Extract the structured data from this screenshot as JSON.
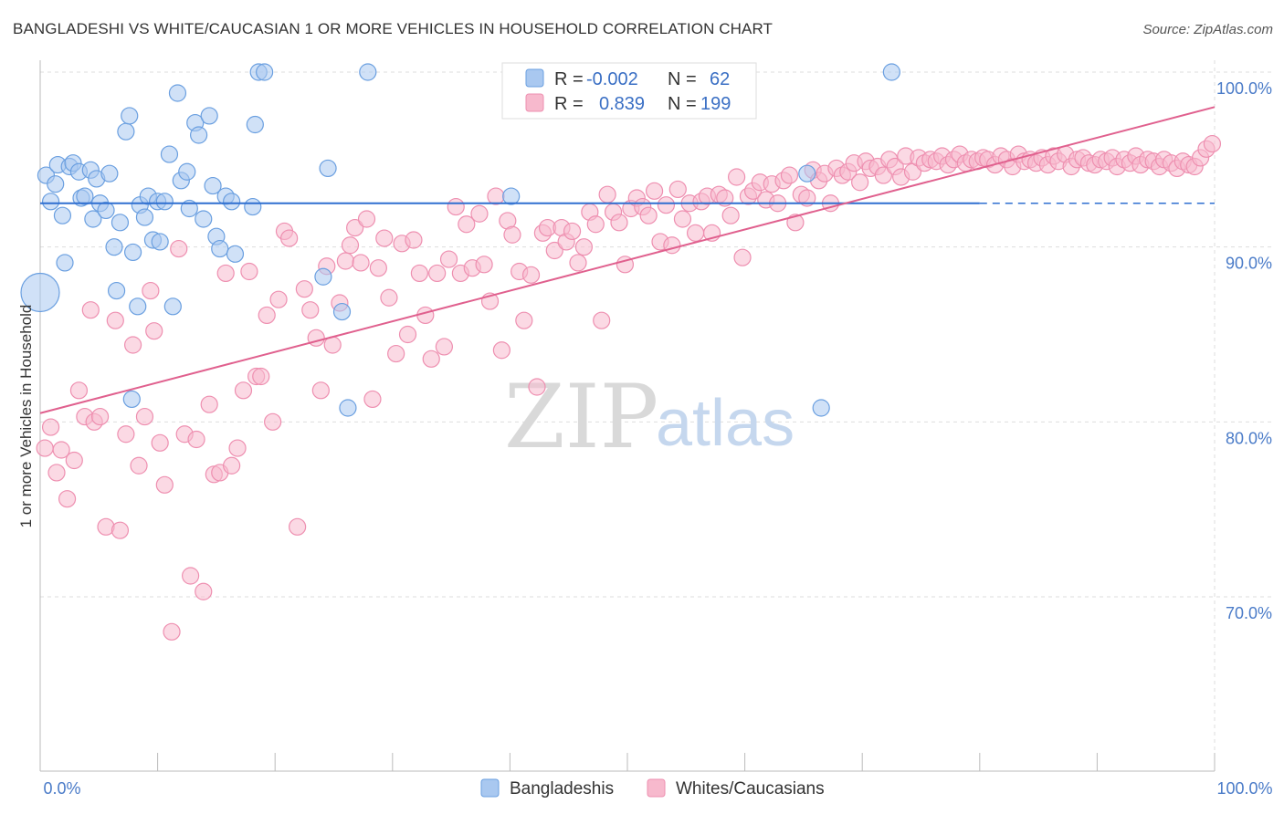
{
  "title": "BANGLADESHI VS WHITE/CAUCASIAN 1 OR MORE VEHICLES IN HOUSEHOLD CORRELATION CHART",
  "source": "Source: ZipAtlas.com",
  "watermark": {
    "zip": "ZIP",
    "atlas": "atlas"
  },
  "colors": {
    "blue_fill": "#a9c8f0",
    "blue_stroke": "#6a9fe0",
    "blue_line": "#2f6fd0",
    "pink_fill": "#f7b9cd",
    "pink_stroke": "#ee8fb0",
    "pink_line": "#e0608e",
    "tick_text": "#4a7bc8",
    "grid": "#dddddd"
  },
  "legend": {
    "r_label": "R =",
    "n_label": "N =",
    "rows": [
      {
        "series": "Bangladeshis",
        "r": "-0.002",
        "n": "62"
      },
      {
        "series": "Whites/Caucasians",
        "r": "0.839",
        "n": "199"
      }
    ]
  },
  "chart_data": {
    "type": "scatter",
    "title": "BANGLADESHI VS WHITE/CAUCASIAN 1 OR MORE VEHICLES IN HOUSEHOLD CORRELATION CHART",
    "xlabel": "",
    "ylabel": "1 or more Vehicles in Household",
    "xlim": [
      0,
      100
    ],
    "ylim": [
      60,
      102
    ],
    "x_tick_labels": [
      {
        "value": 0,
        "label": "0.0%"
      },
      {
        "value": 100,
        "label": "100.0%"
      }
    ],
    "y_tick_labels": [
      {
        "value": 70,
        "label": "70.0%"
      },
      {
        "value": 80,
        "label": "80.0%"
      },
      {
        "value": 90,
        "label": "90.0%"
      },
      {
        "value": 100,
        "label": "100.0%"
      }
    ],
    "grid": true,
    "legend_position": "top-center",
    "series": [
      {
        "name": "Bangladeshis",
        "color": "#a9c8f0",
        "trend": {
          "x0": 0,
          "y0": 92.5,
          "x1": 80,
          "y1": 92.5,
          "dash_to": 100
        },
        "points": [
          [
            0.0,
            87.4,
            "big"
          ],
          [
            0.5,
            94.1
          ],
          [
            0.9,
            92.6
          ],
          [
            1.3,
            93.6
          ],
          [
            1.5,
            94.7
          ],
          [
            1.9,
            91.8
          ],
          [
            2.1,
            89.1
          ],
          [
            2.5,
            94.6
          ],
          [
            2.8,
            94.8
          ],
          [
            3.3,
            94.3
          ],
          [
            3.5,
            92.8
          ],
          [
            3.8,
            92.9
          ],
          [
            4.3,
            94.4
          ],
          [
            4.5,
            91.6
          ],
          [
            4.8,
            93.9
          ],
          [
            5.1,
            92.5
          ],
          [
            5.6,
            92.1
          ],
          [
            5.9,
            94.2
          ],
          [
            6.3,
            90.0
          ],
          [
            6.5,
            87.5
          ],
          [
            6.8,
            91.4
          ],
          [
            7.3,
            96.6
          ],
          [
            7.6,
            97.5
          ],
          [
            7.9,
            89.7
          ],
          [
            8.3,
            86.6
          ],
          [
            8.5,
            92.4
          ],
          [
            8.9,
            91.7
          ],
          [
            9.2,
            92.9
          ],
          [
            9.6,
            90.4
          ],
          [
            10.0,
            92.6
          ],
          [
            10.2,
            90.3
          ],
          [
            10.6,
            92.6
          ],
          [
            11.0,
            95.3
          ],
          [
            11.3,
            86.6
          ],
          [
            11.7,
            98.8
          ],
          [
            12.0,
            93.8
          ],
          [
            12.5,
            94.3
          ],
          [
            12.7,
            92.2
          ],
          [
            13.2,
            97.1
          ],
          [
            13.5,
            96.4
          ],
          [
            13.9,
            91.6
          ],
          [
            14.4,
            97.5
          ],
          [
            14.7,
            93.5
          ],
          [
            15.0,
            90.6
          ],
          [
            15.3,
            89.9
          ],
          [
            15.8,
            92.9
          ],
          [
            16.3,
            92.6
          ],
          [
            16.6,
            89.6
          ],
          [
            18.1,
            92.3
          ],
          [
            18.3,
            97.0
          ],
          [
            18.6,
            100.0
          ],
          [
            19.1,
            100.0
          ],
          [
            7.8,
            81.3
          ],
          [
            24.1,
            88.3
          ],
          [
            24.5,
            94.5
          ],
          [
            25.7,
            86.3
          ],
          [
            26.2,
            80.8
          ],
          [
            27.9,
            100.0
          ],
          [
            40.1,
            92.9
          ],
          [
            66.5,
            80.8
          ],
          [
            72.5,
            100.0
          ],
          [
            65.3,
            94.2
          ]
        ]
      },
      {
        "name": "Whites/Caucasians",
        "color": "#f7b9cd",
        "trend": {
          "x0": 0,
          "y0": 80.5,
          "x1": 100,
          "y1": 98.0
        },
        "points": [
          [
            0.4,
            78.5
          ],
          [
            0.9,
            79.7
          ],
          [
            1.4,
            77.1
          ],
          [
            1.8,
            78.4
          ],
          [
            2.3,
            75.6
          ],
          [
            2.9,
            77.8
          ],
          [
            3.3,
            81.8
          ],
          [
            3.8,
            80.3
          ],
          [
            4.3,
            86.4
          ],
          [
            4.6,
            80.0
          ],
          [
            5.1,
            80.3
          ],
          [
            5.6,
            74.0
          ],
          [
            6.4,
            85.8
          ],
          [
            6.8,
            73.8
          ],
          [
            7.3,
            79.3
          ],
          [
            7.9,
            84.4
          ],
          [
            8.4,
            77.5
          ],
          [
            8.9,
            80.3
          ],
          [
            9.4,
            87.5
          ],
          [
            9.7,
            85.2
          ],
          [
            10.2,
            78.8
          ],
          [
            10.6,
            76.4
          ],
          [
            11.2,
            68.0
          ],
          [
            11.8,
            89.9
          ],
          [
            12.3,
            79.3
          ],
          [
            12.8,
            71.2
          ],
          [
            13.3,
            79.0
          ],
          [
            13.9,
            70.3
          ],
          [
            14.4,
            81.0
          ],
          [
            14.8,
            77.0
          ],
          [
            15.3,
            77.1
          ],
          [
            15.8,
            88.5
          ],
          [
            16.3,
            77.5
          ],
          [
            16.8,
            78.5
          ],
          [
            17.3,
            81.8
          ],
          [
            17.8,
            88.6
          ],
          [
            18.4,
            82.6
          ],
          [
            18.8,
            82.6
          ],
          [
            19.3,
            86.1
          ],
          [
            19.8,
            80.0
          ],
          [
            20.3,
            87.0
          ],
          [
            20.8,
            90.9
          ],
          [
            21.2,
            90.5
          ],
          [
            21.9,
            74.0
          ],
          [
            22.5,
            87.6
          ],
          [
            23.0,
            86.4
          ],
          [
            23.5,
            84.8
          ],
          [
            23.9,
            81.8
          ],
          [
            24.4,
            88.9
          ],
          [
            24.9,
            84.4
          ],
          [
            25.5,
            86.8
          ],
          [
            26.0,
            89.2
          ],
          [
            26.4,
            90.1
          ],
          [
            26.8,
            91.1
          ],
          [
            27.3,
            89.1
          ],
          [
            27.8,
            91.6
          ],
          [
            28.3,
            81.3
          ],
          [
            28.8,
            88.8
          ],
          [
            29.3,
            90.5
          ],
          [
            29.7,
            87.1
          ],
          [
            30.3,
            83.9
          ],
          [
            30.8,
            90.2
          ],
          [
            31.3,
            85.0
          ],
          [
            31.8,
            90.4
          ],
          [
            32.3,
            88.5
          ],
          [
            32.8,
            86.1
          ],
          [
            33.3,
            83.6
          ],
          [
            33.8,
            88.5
          ],
          [
            34.4,
            84.3
          ],
          [
            34.8,
            89.3
          ],
          [
            35.4,
            92.3
          ],
          [
            35.8,
            88.5
          ],
          [
            36.3,
            91.3
          ],
          [
            36.8,
            88.8
          ],
          [
            37.4,
            91.9
          ],
          [
            37.8,
            89.0
          ],
          [
            38.3,
            86.9
          ],
          [
            38.8,
            92.9
          ],
          [
            39.3,
            84.1
          ],
          [
            39.8,
            91.5
          ],
          [
            40.2,
            90.7
          ],
          [
            40.8,
            88.6
          ],
          [
            41.2,
            85.8
          ],
          [
            41.8,
            88.4
          ],
          [
            42.3,
            82.0
          ],
          [
            42.8,
            90.8
          ],
          [
            43.2,
            91.1
          ],
          [
            43.8,
            89.8
          ],
          [
            44.4,
            91.1
          ],
          [
            44.8,
            90.3
          ],
          [
            45.3,
            90.9
          ],
          [
            45.8,
            89.1
          ],
          [
            46.3,
            90.0
          ],
          [
            46.8,
            92.0
          ],
          [
            47.3,
            91.3
          ],
          [
            47.8,
            85.8
          ],
          [
            48.3,
            93.0
          ],
          [
            48.8,
            92.0
          ],
          [
            49.3,
            91.4
          ],
          [
            49.8,
            89.0
          ],
          [
            50.3,
            92.2
          ],
          [
            50.8,
            92.8
          ],
          [
            51.3,
            92.3
          ],
          [
            51.8,
            91.8
          ],
          [
            52.3,
            93.2
          ],
          [
            52.8,
            90.3
          ],
          [
            53.3,
            92.4
          ],
          [
            53.8,
            90.1
          ],
          [
            54.3,
            93.3
          ],
          [
            54.7,
            91.6
          ],
          [
            55.3,
            92.5
          ],
          [
            55.8,
            90.8
          ],
          [
            56.3,
            92.6
          ],
          [
            56.8,
            92.9
          ],
          [
            57.2,
            90.8
          ],
          [
            57.8,
            93.0
          ],
          [
            58.3,
            92.8
          ],
          [
            58.8,
            91.8
          ],
          [
            59.3,
            94.0
          ],
          [
            59.8,
            89.4
          ],
          [
            60.3,
            92.9
          ],
          [
            60.7,
            93.2
          ],
          [
            61.3,
            93.7
          ],
          [
            61.8,
            92.7
          ],
          [
            62.3,
            93.6
          ],
          [
            62.8,
            92.5
          ],
          [
            63.3,
            93.8
          ],
          [
            63.8,
            94.1
          ],
          [
            64.3,
            91.4
          ],
          [
            64.8,
            93.0
          ],
          [
            65.3,
            92.8
          ],
          [
            65.8,
            94.4
          ],
          [
            66.3,
            93.8
          ],
          [
            66.8,
            94.2
          ],
          [
            67.3,
            92.5
          ],
          [
            67.8,
            94.5
          ],
          [
            68.3,
            94.1
          ],
          [
            68.8,
            94.3
          ],
          [
            69.3,
            94.8
          ],
          [
            69.8,
            93.7
          ],
          [
            70.3,
            94.9
          ],
          [
            70.7,
            94.5
          ],
          [
            71.3,
            94.6
          ],
          [
            71.8,
            94.1
          ],
          [
            72.3,
            95.0
          ],
          [
            72.8,
            94.6
          ],
          [
            73.3,
            94.0
          ],
          [
            73.7,
            95.2
          ],
          [
            74.3,
            94.3
          ],
          [
            74.8,
            95.1
          ],
          [
            75.3,
            94.8
          ],
          [
            75.8,
            95.0
          ],
          [
            76.3,
            94.9
          ],
          [
            76.8,
            95.2
          ],
          [
            77.3,
            94.7
          ],
          [
            77.8,
            95.0
          ],
          [
            78.3,
            95.3
          ],
          [
            78.8,
            94.8
          ],
          [
            79.3,
            95.0
          ],
          [
            79.8,
            94.9
          ],
          [
            80.3,
            95.1
          ],
          [
            80.7,
            95.0
          ],
          [
            81.3,
            94.7
          ],
          [
            81.8,
            95.2
          ],
          [
            82.3,
            95.0
          ],
          [
            82.8,
            94.6
          ],
          [
            83.3,
            95.3
          ],
          [
            83.8,
            94.9
          ],
          [
            84.3,
            95.0
          ],
          [
            84.8,
            94.8
          ],
          [
            85.3,
            95.1
          ],
          [
            85.8,
            94.7
          ],
          [
            86.3,
            95.2
          ],
          [
            86.7,
            94.9
          ],
          [
            87.3,
            95.3
          ],
          [
            87.8,
            94.6
          ],
          [
            88.3,
            95.0
          ],
          [
            88.8,
            95.1
          ],
          [
            89.3,
            94.8
          ],
          [
            89.8,
            94.7
          ],
          [
            90.3,
            95.0
          ],
          [
            90.8,
            94.9
          ],
          [
            91.3,
            95.1
          ],
          [
            91.7,
            94.6
          ],
          [
            92.3,
            95.0
          ],
          [
            92.8,
            94.8
          ],
          [
            93.3,
            95.2
          ],
          [
            93.7,
            94.7
          ],
          [
            94.3,
            95.0
          ],
          [
            94.8,
            94.9
          ],
          [
            95.3,
            94.6
          ],
          [
            95.7,
            95.0
          ],
          [
            96.3,
            94.8
          ],
          [
            96.8,
            94.5
          ],
          [
            97.3,
            94.9
          ],
          [
            97.8,
            94.7
          ],
          [
            98.3,
            94.6
          ],
          [
            98.8,
            95.1
          ],
          [
            99.3,
            95.6
          ],
          [
            99.8,
            95.9
          ]
        ]
      }
    ]
  }
}
